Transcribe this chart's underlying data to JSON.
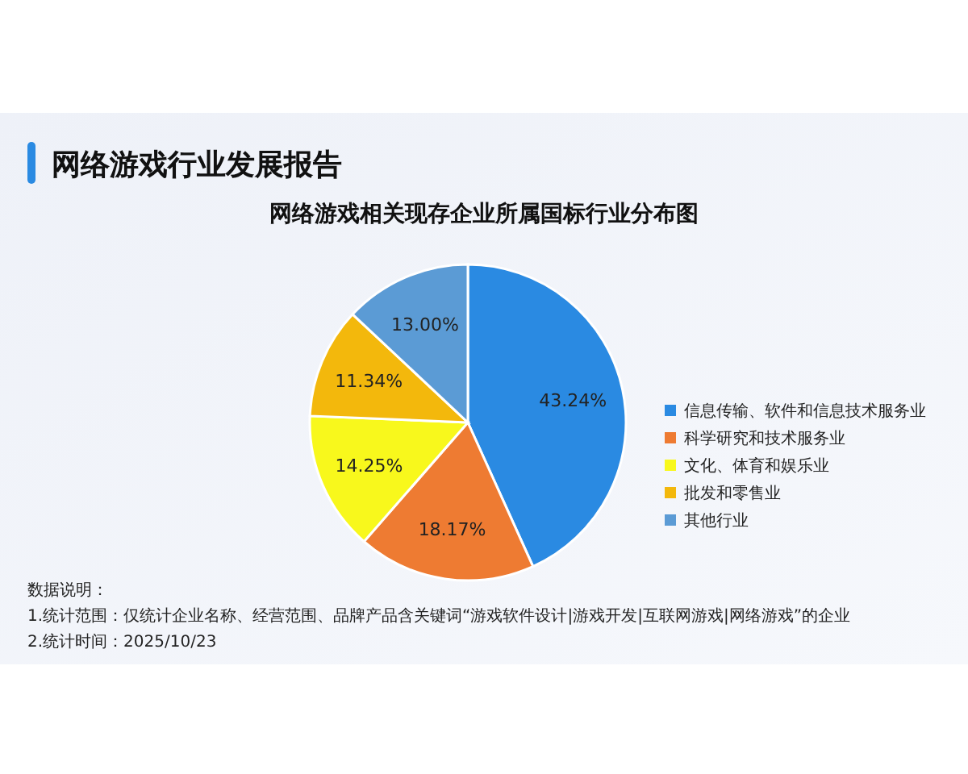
{
  "chart_data": {
    "type": "pie",
    "title": "网络游戏行业发展报告",
    "subtitle": "网络游戏相关现存企业所属国标行业分布图",
    "categories": [
      "信息传输、软件和信息技术服务业",
      "科学研究和技术服务业",
      "文化、体育和娱乐业",
      "批发和零售业",
      "其他行业"
    ],
    "values": [
      43.24,
      18.17,
      14.25,
      11.34,
      13.0
    ],
    "value_labels": [
      "43.24%",
      "18.17%",
      "14.25%",
      "11.34%",
      "13.00%"
    ],
    "colors": [
      "#2a8ae2",
      "#ee7b32",
      "#f8f81c",
      "#f3b80c",
      "#5b9bd5"
    ],
    "legend": "right",
    "annotations": [
      "数据说明：",
      "1.统计范围：仅统计企业名称、经营范围、品牌产品含关键词“游戏软件设计|游戏开发|互联网游戏|网络游戏”的企业",
      "2.统计时间：2025/10/23"
    ]
  }
}
